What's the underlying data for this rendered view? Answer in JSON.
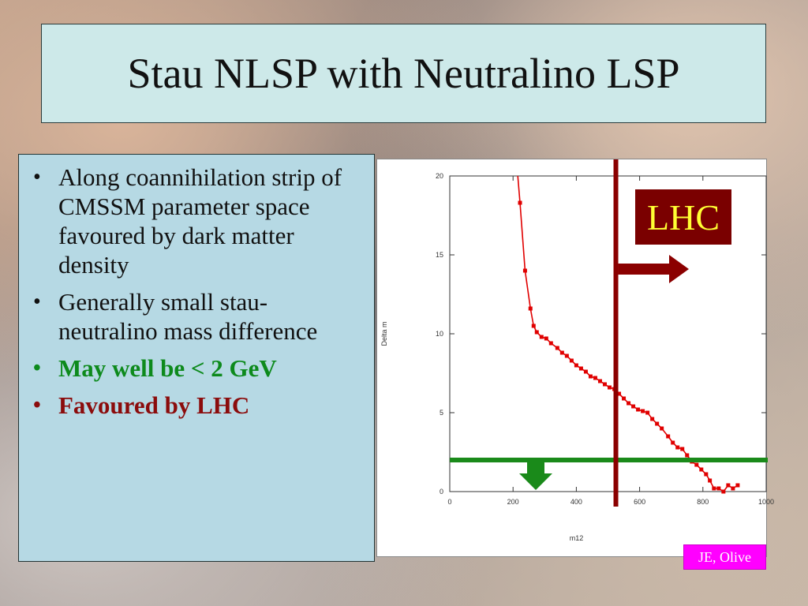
{
  "title": "Stau NLSP with Neutralino LSP",
  "bullets": [
    {
      "text": "Along coannihilation strip  of CMSSM parameter space favoured by dark matter density",
      "style": "normal"
    },
    {
      "text": "Generally small stau-neutralino mass difference",
      "style": "normal"
    },
    {
      "text": "May well be < 2 GeV",
      "style": "green"
    },
    {
      "text": "Favoured by LHC",
      "style": "red"
    }
  ],
  "bullet_glyph": "•",
  "lhc_label": "LHC",
  "credit": "JE, Olive",
  "colors": {
    "title_bg": "#cde9e9",
    "bullets_bg": "#b6d9e4",
    "curve": "#e00000",
    "lhc_line": "#8b0000",
    "threshold_line": "#1a8a1a",
    "lhc_box_bg": "#7a0000",
    "lhc_text": "#ffff33",
    "credit_bg": "#ff00ff"
  },
  "chart_data": {
    "type": "line",
    "xlabel": "m12",
    "ylabel": "Delta m",
    "xlim": [
      0,
      1000
    ],
    "ylim": [
      0,
      20
    ],
    "xticks": [
      0,
      200,
      400,
      600,
      800,
      1000
    ],
    "yticks": [
      0,
      5,
      10,
      15,
      20
    ],
    "series": [
      {
        "x": [
          215,
          222,
          238,
          255,
          265,
          275,
          290,
          305,
          320,
          340,
          355,
          370,
          385,
          400,
          415,
          430,
          445,
          460,
          475,
          490,
          505,
          520,
          535,
          550,
          565,
          580,
          595,
          610,
          625,
          640,
          655,
          670,
          690,
          705,
          720,
          735,
          750,
          765,
          780,
          795,
          810,
          822,
          835,
          850,
          865,
          880,
          895,
          910
        ],
        "y": [
          20,
          18.3,
          14.0,
          11.6,
          10.5,
          10.1,
          9.8,
          9.7,
          9.4,
          9.1,
          8.8,
          8.6,
          8.3,
          8.0,
          7.8,
          7.6,
          7.3,
          7.2,
          7.0,
          6.8,
          6.6,
          6.5,
          6.2,
          5.9,
          5.6,
          5.4,
          5.2,
          5.1,
          5.0,
          4.6,
          4.3,
          4.0,
          3.5,
          3.1,
          2.8,
          2.7,
          2.3,
          1.9,
          1.7,
          1.4,
          1.1,
          0.7,
          0.2,
          0.2,
          0.0,
          0.4,
          0.2,
          0.4
        ]
      }
    ],
    "annotations": {
      "lhc_vertical_line_x": 525,
      "threshold_horizontal_line_y": 2
    }
  }
}
